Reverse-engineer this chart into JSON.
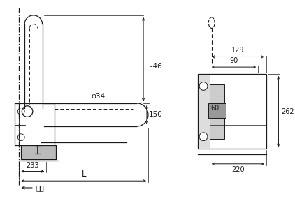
{
  "bg_color": "#ffffff",
  "line_color": "#1a1a1a",
  "dim_color": "#1a1a1a",
  "fig_width": 4.22,
  "fig_height": 2.85,
  "annotations": {
    "L46": "L-46",
    "phi34": "φ34",
    "dim150": "150",
    "dim233": "233",
    "L": "L",
    "wall": "壁面",
    "dim129": "129",
    "dim90": "90",
    "dim60": "60",
    "dim220": "220",
    "dim262": "262"
  }
}
